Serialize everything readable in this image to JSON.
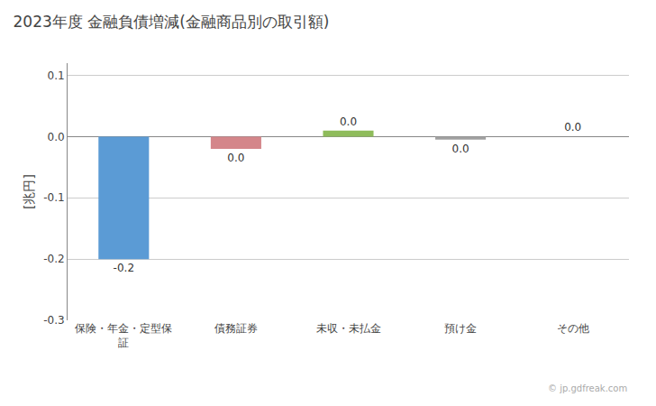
{
  "chart_data": {
    "type": "bar",
    "title": "2023年度 金融負債増減(金融商品別の取引額)",
    "ylabel": "[兆円]",
    "categories": [
      "保険・年金・定型保\n証",
      "債務証券",
      "未収・未払金",
      "預け金",
      "その他"
    ],
    "values": [
      -0.2,
      -0.02,
      0.01,
      -0.005,
      0.0
    ],
    "value_labels": [
      "-0.2",
      "0.0",
      "0.0",
      "0.0",
      "0.0"
    ],
    "data_labels": true,
    "colors": [
      "#5b9bd5",
      "#d4868a",
      "#8fbc5b",
      "#a0a0a0",
      "#a0a0a0"
    ],
    "ylim": [
      -0.3,
      0.12
    ],
    "yticks": [
      -0.3,
      -0.2,
      -0.1,
      {
        "value": 0,
        "label": "0.0"
      },
      0.1
    ],
    "grid": true,
    "annotations": [
      "© jp.gdfreak.com"
    ]
  }
}
